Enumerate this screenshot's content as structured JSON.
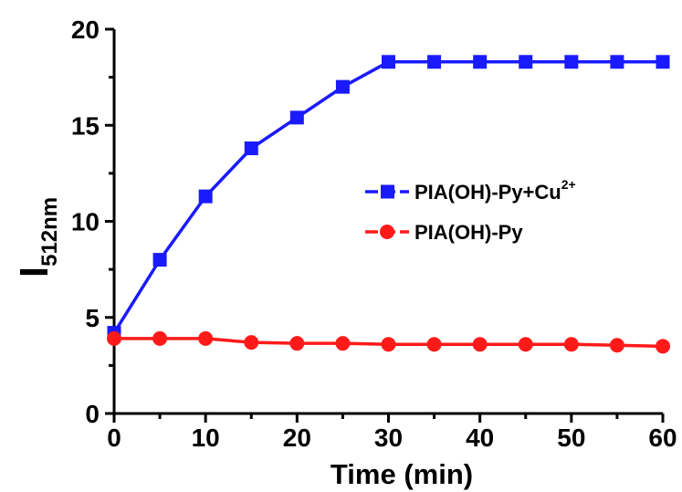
{
  "chart_data": {
    "type": "line",
    "xlabel": "Time (min)",
    "ylabel": {
      "main": "I",
      "subscript": "512nm"
    },
    "xlim": [
      0,
      60
    ],
    "ylim": [
      0,
      20
    ],
    "x_ticks": [
      "0",
      "10",
      "20",
      "30",
      "40",
      "50",
      "60"
    ],
    "y_ticks": [
      "0",
      "5",
      "10",
      "15",
      "20"
    ],
    "grid": false,
    "legend_position": "right-middle",
    "series": [
      {
        "name": "PIA(OH)-Py+Cu",
        "name_superscript": "2+",
        "color": "#1a1aff",
        "marker": "square",
        "x": [
          0,
          5,
          10,
          15,
          20,
          25,
          30,
          35,
          40,
          45,
          50,
          55,
          60
        ],
        "y": [
          4.2,
          8.0,
          11.3,
          13.8,
          15.4,
          17.0,
          18.3,
          18.3,
          18.3,
          18.3,
          18.3,
          18.3,
          18.3
        ]
      },
      {
        "name": "PIA(OH)-Py",
        "name_superscript": "",
        "color": "#ff1a1a",
        "marker": "circle",
        "x": [
          0,
          5,
          10,
          15,
          20,
          25,
          30,
          35,
          40,
          45,
          50,
          55,
          60
        ],
        "y": [
          3.9,
          3.9,
          3.9,
          3.7,
          3.65,
          3.65,
          3.6,
          3.6,
          3.6,
          3.6,
          3.6,
          3.55,
          3.5
        ]
      }
    ]
  }
}
